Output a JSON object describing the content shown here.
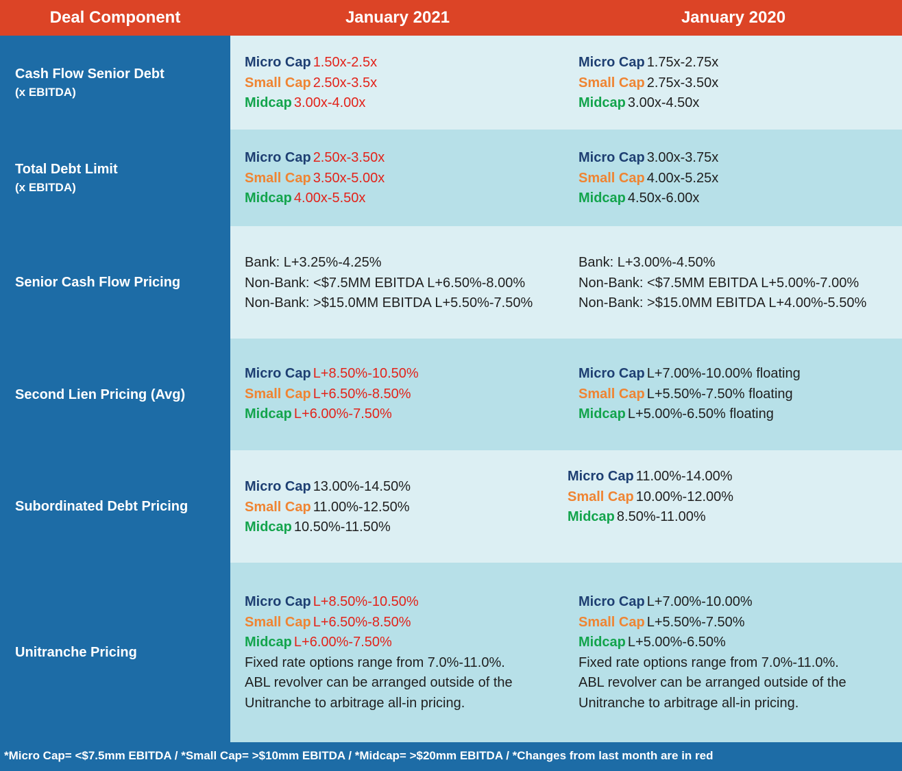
{
  "header": {
    "col0": "Deal Component",
    "col1": "January 2021",
    "col2": "January 2020"
  },
  "rows": [
    {
      "label": "Cash Flow Senior Debt",
      "sublabel": "(x EBITDA)",
      "jan2021": [
        {
          "tier": "Micro Cap",
          "value": "1.50x-2.5x",
          "changed": true
        },
        {
          "tier": "Small Cap",
          "value": "2.50x-3.5x",
          "changed": true
        },
        {
          "tier": "Midcap",
          "value": "3.00x-4.00x",
          "changed": true
        }
      ],
      "jan2020": [
        {
          "tier": "Micro Cap",
          "value": "1.75x-2.75x"
        },
        {
          "tier": "Small Cap",
          "value": "2.75x-3.50x"
        },
        {
          "tier": "Midcap",
          "value": "3.00x-4.50x"
        }
      ]
    },
    {
      "label": "Total Debt Limit",
      "sublabel": "(x EBITDA)",
      "jan2021": [
        {
          "tier": "Micro Cap",
          "value": "2.50x-3.50x",
          "changed": true
        },
        {
          "tier": "Small Cap",
          "value": "3.50x-5.00x",
          "changed": true
        },
        {
          "tier": "Midcap",
          "value": "4.00x-5.50x",
          "changed": true
        }
      ],
      "jan2020": [
        {
          "tier": "Micro Cap",
          "value": "3.00x-3.75x"
        },
        {
          "tier": "Small Cap",
          "value": "4.00x-5.25x"
        },
        {
          "tier": "Midcap",
          "value": "4.50x-6.00x"
        }
      ]
    },
    {
      "label": "Senior Cash Flow Pricing",
      "jan2021_lines": [
        "Bank: L+3.25%-4.25%",
        "Non-Bank: <$7.5MM EBITDA L+6.50%-8.00%",
        "Non-Bank: >$15.0MM EBITDA L+5.50%-7.50%"
      ],
      "jan2020_lines": [
        "Bank: L+3.00%-4.50%",
        "Non-Bank: <$7.5MM EBITDA L+5.00%-7.00%",
        "Non-Bank: >$15.0MM EBITDA L+4.00%-5.50%"
      ]
    },
    {
      "label": "Second Lien Pricing (Avg)",
      "jan2021": [
        {
          "tier": "Micro Cap",
          "value": "L+8.50%-10.50%",
          "changed": true
        },
        {
          "tier": "Small Cap",
          "value": "L+6.50%-8.50%",
          "changed": true
        },
        {
          "tier": "Midcap",
          "value": "L+6.00%-7.50%",
          "changed": true
        }
      ],
      "jan2020": [
        {
          "tier": "Micro Cap",
          "value": "L+7.00%-10.00% floating"
        },
        {
          "tier": "Small Cap",
          "value": "L+5.50%-7.50% floating"
        },
        {
          "tier": "Midcap",
          "value": "L+5.00%-6.50% floating"
        }
      ]
    },
    {
      "label": "Subordinated Debt Pricing",
      "jan2021": [
        {
          "tier": "Micro Cap",
          "value": "13.00%-14.50%"
        },
        {
          "tier": "Small Cap",
          "value": "11.00%-12.50%"
        },
        {
          "tier": "Midcap",
          "value": "10.50%-11.50%"
        }
      ],
      "jan2020": [
        {
          "tier": "Micro Cap",
          "value": "11.00%-14.00%"
        },
        {
          "tier": "Small Cap",
          "value": "10.00%-12.00%"
        },
        {
          "tier": "Midcap",
          "value": "8.50%-11.00%"
        }
      ]
    },
    {
      "label": "Unitranche Pricing",
      "jan2021": [
        {
          "tier": "Micro Cap",
          "value": "L+8.50%-10.50%",
          "changed": true
        },
        {
          "tier": "Small Cap",
          "value": "L+6.50%-8.50%",
          "changed": true
        },
        {
          "tier": "Midcap",
          "value": "L+6.00%-7.50%",
          "changed": true
        }
      ],
      "jan2021_notes": [
        "Fixed rate options range from 7.0%-11.0%.",
        "ABL revolver can be arranged outside of the",
        "Unitranche to arbitrage all-in pricing."
      ],
      "jan2020": [
        {
          "tier": "Micro Cap",
          "value": "L+7.00%-10.00%"
        },
        {
          "tier": "Small Cap",
          "value": "L+5.50%-7.50%"
        },
        {
          "tier": "Midcap",
          "value": "L+5.00%-6.50%"
        }
      ],
      "jan2020_notes": [
        "Fixed rate options range from 7.0%-11.0%.",
        "ABL revolver can be arranged outside of the",
        "Unitranche to arbitrage all-in pricing."
      ]
    }
  ],
  "footer": "*Micro Cap= <$7.5mm EBITDA / *Small Cap= >$10mm EBITDA / *Midcap= >$20mm EBITDA / *Changes from last month are in red",
  "colors": {
    "header_bg": "#DC4426",
    "left_col_bg": "#1D6CA6",
    "row_light": "#DCEFF3",
    "row_dark": "#B7E0E8",
    "micro_cap": "#1E3F72",
    "small_cap": "#EF8432",
    "midcap": "#13A44C",
    "changed_red": "#E2231A"
  }
}
